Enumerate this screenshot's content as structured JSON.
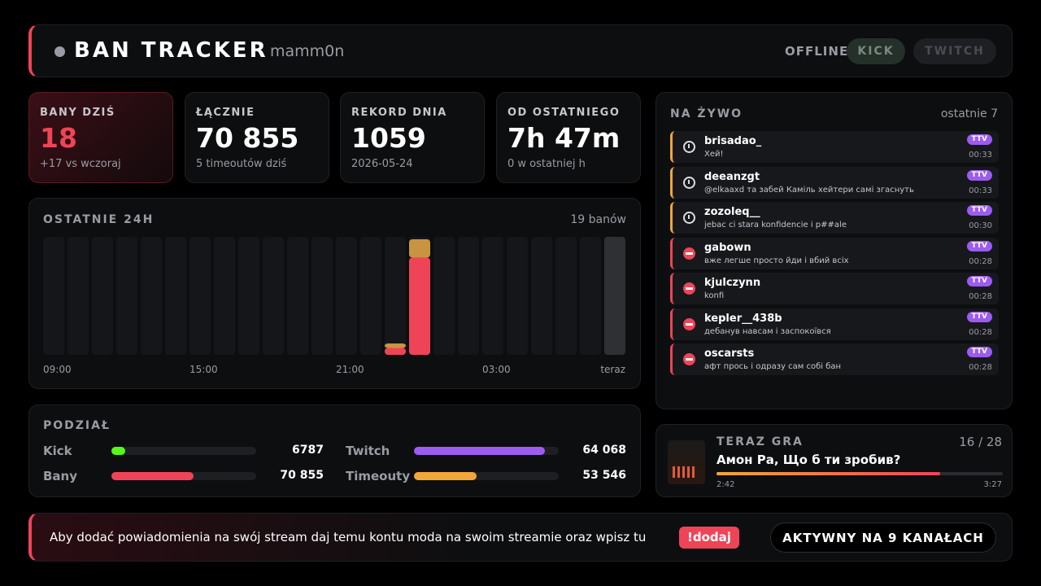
{
  "header": {
    "title": "BAN TRACKER",
    "user": "mamm0n",
    "status": "OFFLINE",
    "buttons": [
      "KICK",
      "TWITCH"
    ]
  },
  "stats": [
    {
      "label": "BANY DZIŚ",
      "value": "18",
      "note": "+17 vs wczoraj"
    },
    {
      "label": "ŁĄCZNIE",
      "value": "70 855",
      "note": "5 timeoutów dziś"
    },
    {
      "label": "REKORD DNIA",
      "value": "1059",
      "note": "2026-05-24"
    },
    {
      "label": "OD OSTATNIEGO",
      "value": "7h 47m",
      "note": "0 w ostatniej h"
    }
  ],
  "chart_data": {
    "type": "bar",
    "stacked": true,
    "title": "OSTATNIE 24H",
    "summary": "19 banów",
    "categories": [
      "09:00",
      null,
      null,
      null,
      null,
      null,
      "15:00",
      null,
      null,
      null,
      null,
      null,
      "21:00",
      null,
      null,
      null,
      null,
      null,
      "03:00",
      null,
      null,
      null,
      null,
      "teraz"
    ],
    "series": [
      {
        "color": "#ef4458",
        "values": [
          0,
          0,
          0,
          0,
          0,
          0,
          0,
          0,
          0,
          0,
          0,
          0,
          0,
          0,
          1,
          14,
          0,
          0,
          0,
          0,
          0,
          0,
          0,
          0
        ]
      },
      {
        "color": "#c89441",
        "values": [
          0,
          0,
          0,
          0,
          0,
          0,
          0,
          0,
          0,
          0,
          0,
          0,
          0,
          0,
          1,
          3,
          0,
          0,
          0,
          0,
          0,
          0,
          0,
          0
        ]
      }
    ]
  },
  "breakdown": {
    "title": "PODZIAŁ",
    "items": [
      {
        "label": "Kick",
        "value": 6787,
        "color": "#53fc18"
      },
      {
        "label": "Twitch",
        "value": 64068,
        "value_label": "64 068",
        "color": "#9d5cf0"
      },
      {
        "label": "Bany",
        "value": 70855,
        "value_label": "70 855",
        "color": "#ef4458"
      },
      {
        "label": "Timeouty",
        "value": 53546,
        "value_label": "53 546",
        "color": "#f0a73a"
      }
    ]
  },
  "live": {
    "title": "NA ŻYWO",
    "subtitle": "ostatnie 7",
    "events": [
      {
        "user": "brisadao_",
        "message": "Хей!",
        "badge": "TTV",
        "time": "00:33",
        "icon": "timeout"
      },
      {
        "user": "deeanzgt",
        "message": "@elkaaxd та забей Каміль хейтери самі згаснуть",
        "badge": "TTV",
        "time": "00:33",
        "icon": "timeout"
      },
      {
        "user": "zozoleq__",
        "message": "jebac ci stara konfidencie i p##ale",
        "badge": "TTV",
        "time": "00:30",
        "icon": "timeout"
      },
      {
        "user": "gabown",
        "message": "вже легше просто йди і вбий всіх",
        "badge": "TTV",
        "time": "00:28",
        "icon": "ban"
      },
      {
        "user": "kjulczynn",
        "message": "konfi",
        "badge": "TTV",
        "time": "00:28",
        "icon": "ban"
      },
      {
        "user": "kepler__438b",
        "message": "дебанув навсам і заспокоївся",
        "badge": "TTV",
        "time": "00:28",
        "icon": "ban"
      },
      {
        "user": "oscarsts",
        "message": "афт прось і одразу сам собі бан",
        "badge": "TTV",
        "time": "00:28",
        "icon": "ban"
      }
    ]
  },
  "now_playing": {
    "title": "TERAZ GRA",
    "position": "16 / 28",
    "song": "Амон Ра, Що б ти зробив?",
    "elapsed": "2:42",
    "duration": "3:27"
  },
  "footer": {
    "text": "Aby dodać powiadomienia na swój stream daj temu kontu moda na swoim streamie oraz wpisz tu",
    "command": "!dodaj",
    "status": "AKTYWNY NA 9 KANAŁACH"
  }
}
